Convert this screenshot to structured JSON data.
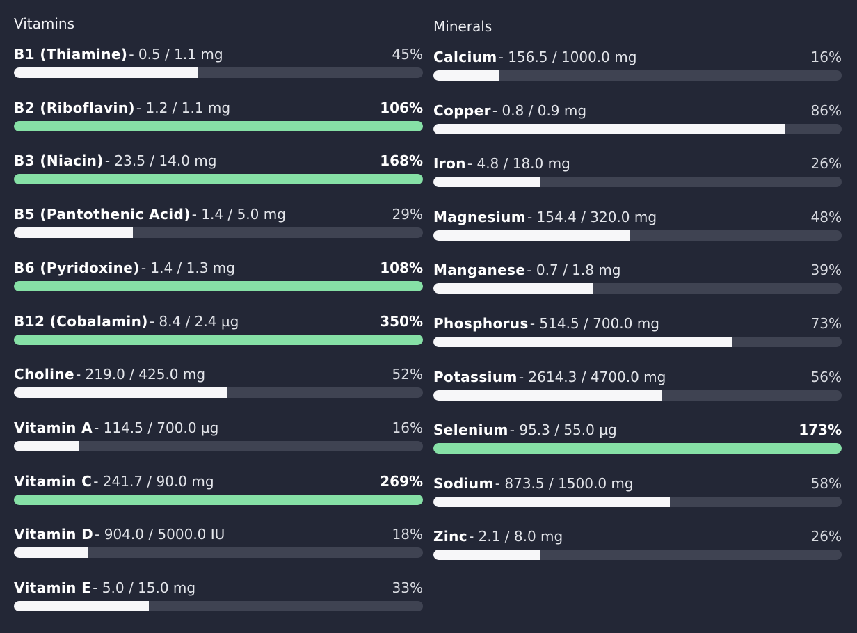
{
  "colors": {
    "background": "#232736",
    "track": "#3f4352",
    "fill_normal": "#f7f7f9",
    "fill_over": "#86e0a6"
  },
  "vitamins": {
    "title": "Vitamins",
    "items": [
      {
        "name": "B1 (Thiamine)",
        "amount": "- 0.5 / 1.1 mg",
        "pct": "45%",
        "fraction": 0.45
      },
      {
        "name": "B2 (Riboflavin)",
        "amount": "- 1.2 / 1.1 mg",
        "pct": "106%",
        "fraction": 1.0
      },
      {
        "name": "B3 (Niacin)",
        "amount": "- 23.5 / 14.0 mg",
        "pct": "168%",
        "fraction": 1.0
      },
      {
        "name": "B5 (Pantothenic Acid)",
        "amount": "- 1.4 / 5.0 mg",
        "pct": "29%",
        "fraction": 0.29
      },
      {
        "name": "B6 (Pyridoxine)",
        "amount": "- 1.4 / 1.3 mg",
        "pct": "108%",
        "fraction": 1.0
      },
      {
        "name": "B12 (Cobalamin)",
        "amount": "- 8.4 / 2.4 µg",
        "pct": "350%",
        "fraction": 1.0
      },
      {
        "name": "Choline",
        "amount": "- 219.0 / 425.0 mg",
        "pct": "52%",
        "fraction": 0.52
      },
      {
        "name": "Vitamin A",
        "amount": "- 114.5 / 700.0 µg",
        "pct": "16%",
        "fraction": 0.16
      },
      {
        "name": "Vitamin C",
        "amount": "- 241.7 / 90.0 mg",
        "pct": "269%",
        "fraction": 1.0
      },
      {
        "name": "Vitamin D",
        "amount": "- 904.0 / 5000.0 IU",
        "pct": "18%",
        "fraction": 0.18
      },
      {
        "name": "Vitamin E",
        "amount": "- 5.0 / 15.0 mg",
        "pct": "33%",
        "fraction": 0.33
      }
    ]
  },
  "minerals": {
    "title": "Minerals",
    "items": [
      {
        "name": "Calcium",
        "amount": "- 156.5 / 1000.0 mg",
        "pct": "16%",
        "fraction": 0.16
      },
      {
        "name": "Copper",
        "amount": "- 0.8 / 0.9 mg",
        "pct": "86%",
        "fraction": 0.86
      },
      {
        "name": "Iron",
        "amount": "- 4.8 / 18.0 mg",
        "pct": "26%",
        "fraction": 0.26
      },
      {
        "name": "Magnesium",
        "amount": "- 154.4 / 320.0 mg",
        "pct": "48%",
        "fraction": 0.48
      },
      {
        "name": "Manganese",
        "amount": "- 0.7 / 1.8 mg",
        "pct": "39%",
        "fraction": 0.39
      },
      {
        "name": "Phosphorus",
        "amount": "- 514.5 / 700.0 mg",
        "pct": "73%",
        "fraction": 0.73
      },
      {
        "name": "Potassium",
        "amount": "- 2614.3 / 4700.0 mg",
        "pct": "56%",
        "fraction": 0.56
      },
      {
        "name": "Selenium",
        "amount": "- 95.3 / 55.0 µg",
        "pct": "173%",
        "fraction": 1.0
      },
      {
        "name": "Sodium",
        "amount": "- 873.5 / 1500.0 mg",
        "pct": "58%",
        "fraction": 0.58
      },
      {
        "name": "Zinc",
        "amount": "- 2.1 / 8.0 mg",
        "pct": "26%",
        "fraction": 0.26
      }
    ]
  }
}
